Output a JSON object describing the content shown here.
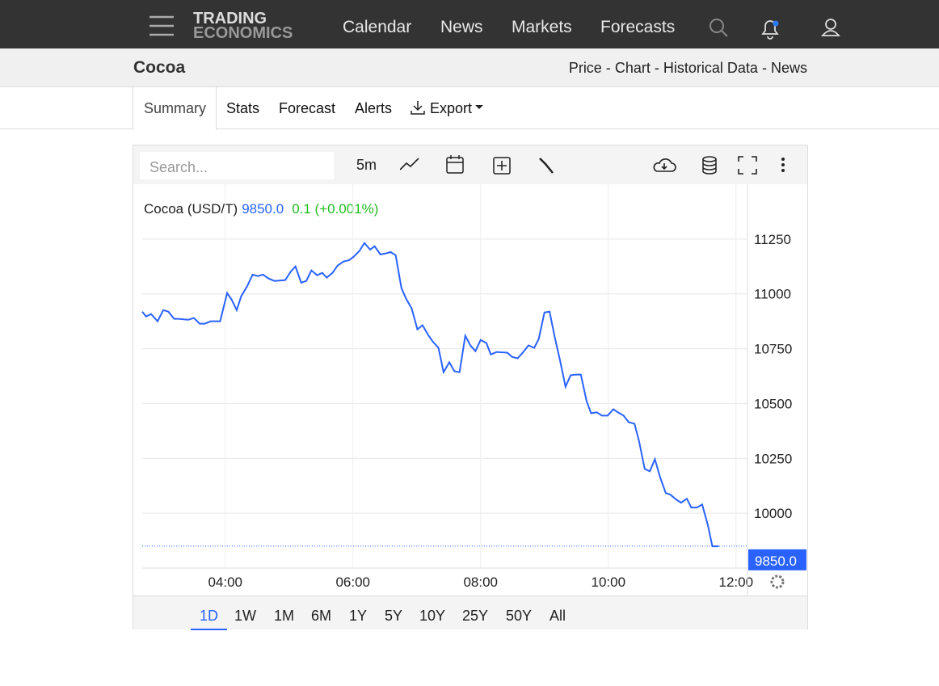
{
  "nav": {
    "logo_top": "TRADING",
    "logo_bottom": "ECONOMICS",
    "links": [
      "Calendar",
      "News",
      "Markets",
      "Forecasts"
    ]
  },
  "header": {
    "title": "Cocoa",
    "links": [
      "Price",
      "Chart",
      "Historical Data",
      "News"
    ],
    "separator": "-"
  },
  "tabs": [
    "Summary",
    "Stats",
    "Forecast",
    "Alerts",
    "Export"
  ],
  "toolbar": {
    "search_placeholder": "Search...",
    "interval": "5m"
  },
  "ranges": [
    "1D",
    "1W",
    "1M",
    "6M",
    "1Y",
    "5Y",
    "10Y",
    "25Y",
    "50Y",
    "All"
  ],
  "chart_data": {
    "type": "line",
    "title": "Cocoa (USD/T)",
    "change_label": "0.1 (+0.001%)",
    "last": {
      "value": 9850,
      "label": "9850.0"
    },
    "color": "#2962ff",
    "x": [
      2.7,
      2.76,
      2.84,
      2.94,
      3.03,
      3.11,
      3.2,
      3.27,
      3.42,
      3.51,
      3.6,
      3.68,
      3.77,
      3.92,
      4.03,
      4.1,
      4.18,
      4.25,
      4.34,
      4.43,
      4.51,
      4.59,
      4.68,
      4.77,
      4.94,
      5.03,
      5.1,
      5.19,
      5.27,
      5.35,
      5.44,
      5.52,
      5.59,
      5.68,
      5.76,
      5.85,
      5.94,
      6.01,
      6.1,
      6.18,
      6.27,
      6.34,
      6.43,
      6.51,
      6.59,
      6.67,
      6.76,
      6.84,
      6.92,
      7.01,
      7.09,
      7.18,
      7.25,
      7.34,
      7.42,
      7.51,
      7.59,
      7.67,
      7.76,
      7.84,
      7.92,
      8.0,
      8.09,
      8.16,
      8.25,
      8.42,
      8.49,
      8.58,
      8.66,
      8.75,
      8.84,
      8.91,
      9.0,
      9.08,
      9.16,
      9.24,
      9.33,
      9.41,
      9.49,
      9.57,
      9.66,
      9.73,
      9.82,
      9.9,
      9.99,
      10.08,
      10.15,
      10.24,
      10.32,
      10.41,
      10.48,
      10.57,
      10.65,
      10.73,
      10.81,
      10.9,
      10.97,
      11.06,
      11.14,
      11.23,
      11.3,
      11.39,
      11.47,
      11.56,
      11.63,
      11.73
    ],
    "values": [
      10919,
      10897,
      10908,
      10875,
      10926,
      10919,
      10886,
      10886,
      10882,
      10890,
      10864,
      10864,
      10875,
      10875,
      11004,
      10974,
      10926,
      10989,
      11033,
      11088,
      11081,
      11088,
      11070,
      11059,
      11063,
      11103,
      11125,
      11051,
      11059,
      11107,
      11085,
      11096,
      11074,
      11096,
      11129,
      11147,
      11154,
      11169,
      11195,
      11232,
      11202,
      11217,
      11180,
      11184,
      11191,
      11176,
      11026,
      10974,
      10934,
      10838,
      10857,
      10812,
      10783,
      10754,
      10643,
      10688,
      10647,
      10643,
      10809,
      10765,
      10739,
      10790,
      10776,
      10724,
      10735,
      10732,
      10713,
      10706,
      10732,
      10765,
      10754,
      10794,
      10915,
      10919,
      10805,
      10702,
      10577,
      10629,
      10632,
      10632,
      10511,
      10456,
      10460,
      10445,
      10445,
      10474,
      10460,
      10445,
      10415,
      10408,
      10331,
      10202,
      10191,
      10246,
      10165,
      10092,
      10085,
      10063,
      10048,
      10066,
      10026,
      10026,
      10040,
      9945,
      9849,
      9849
    ],
    "xlim": [
      2.7,
      12.18
    ],
    "xticks": [
      {
        "value": 4,
        "label": "04:00"
      },
      {
        "value": 6,
        "label": "06:00"
      },
      {
        "value": 8,
        "label": "08:00"
      },
      {
        "value": 10,
        "label": "10:00"
      },
      {
        "value": 12,
        "label": "12:00"
      }
    ],
    "ylim": [
      9750,
      11500
    ],
    "yticks": [
      10000,
      10250,
      10500,
      10750,
      11000,
      11250
    ],
    "grid": true
  }
}
